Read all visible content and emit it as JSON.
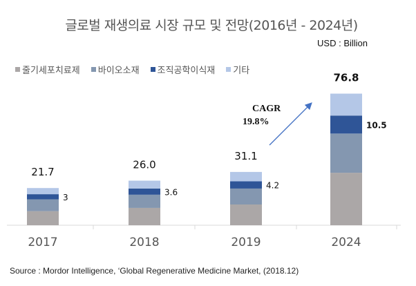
{
  "chart_data": {
    "type": "bar",
    "stacked": true,
    "title": "글로벌 재생의료 시장 규모 및 전망(2016년 - 2024년)",
    "unit": "USD : Billion",
    "categories": [
      "2017",
      "2018",
      "2019",
      "2024"
    ],
    "series": [
      {
        "name": "줄기세포치료제",
        "color": "#aba7a7",
        "values": [
          8.2,
          10.1,
          12.1,
          30.6
        ]
      },
      {
        "name": "바이오소재",
        "color": "#8497b0",
        "values": [
          6.9,
          7.7,
          9.3,
          22.9
        ]
      },
      {
        "name": "조직공학이식재",
        "color": "#2f5597",
        "values": [
          3.0,
          3.6,
          4.2,
          10.5
        ]
      },
      {
        "name": "기타",
        "color": "#b4c7e7",
        "values": [
          3.6,
          4.6,
          5.5,
          12.8
        ]
      }
    ],
    "totals": [
      "21.7",
      "26.0",
      "31.1",
      "76.8"
    ],
    "segment_labels": [
      "3",
      "3.6",
      "4.2",
      "10.5"
    ],
    "annotation": {
      "line1": "CAGR",
      "line2": "19.8%"
    },
    "legend_position": "top-left",
    "grid": false,
    "ylim": [
      0,
      80
    ]
  },
  "source": "Source : Mordor Intelligence, ‘Global Regenerative Medicine Market, (2018.12)"
}
